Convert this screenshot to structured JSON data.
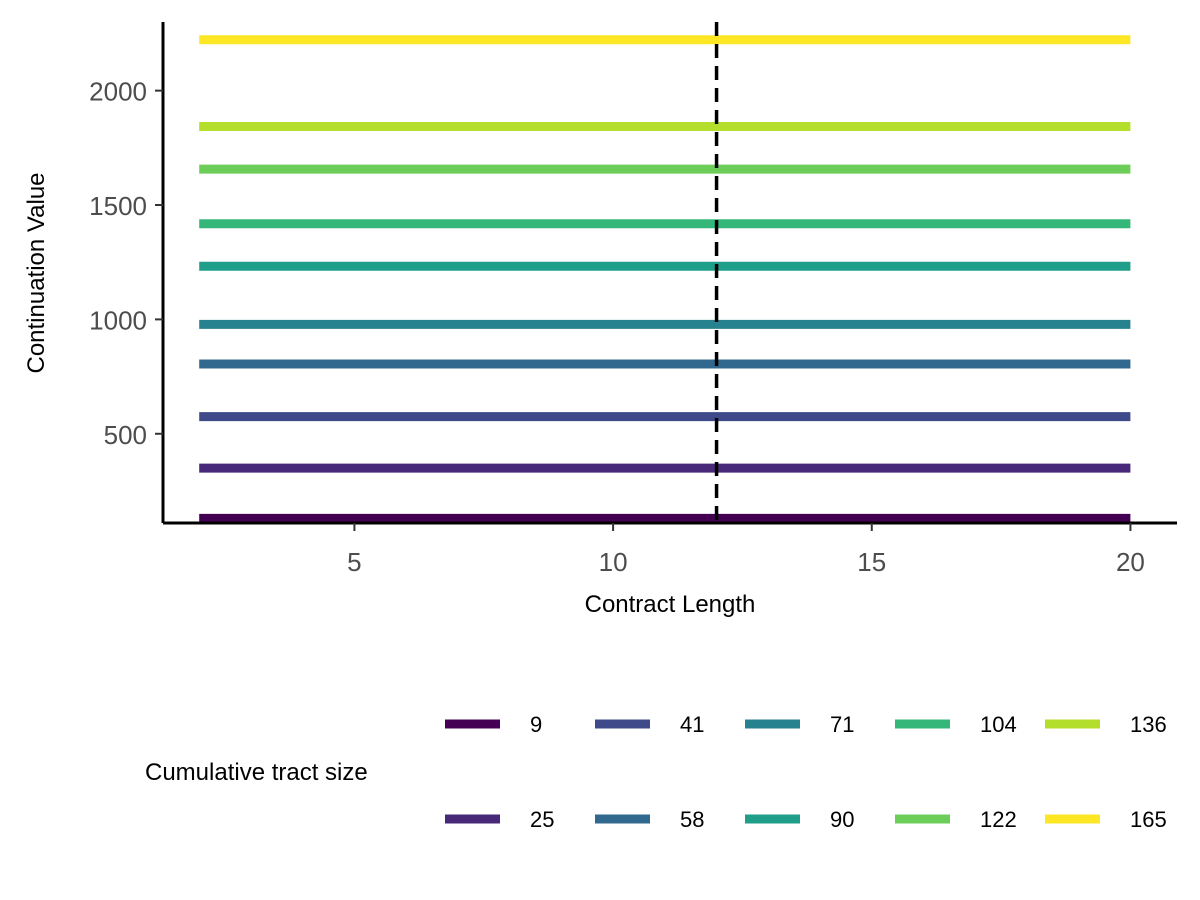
{
  "chart_data": {
    "type": "line",
    "title": "",
    "xlabel": "Contract Length",
    "ylabel": "Continuation Value",
    "xlim": [
      1.3,
      20.9
    ],
    "ylim": [
      110,
      2300
    ],
    "x_ticks": [
      5,
      10,
      15,
      20
    ],
    "y_ticks": [
      500,
      1000,
      1500,
      2000
    ],
    "grid": false,
    "reference_line": {
      "x": 12,
      "style": "dashed",
      "color": "#000000"
    },
    "legend": {
      "title": "Cumulative tract size",
      "position": "bottom"
    },
    "series": [
      {
        "name": "9",
        "color": "#440154",
        "x": [
          2,
          20
        ],
        "y": [
          130,
          130
        ]
      },
      {
        "name": "25",
        "color": "#482878",
        "x": [
          2,
          20
        ],
        "y": [
          350,
          350
        ]
      },
      {
        "name": "41",
        "color": "#3E4A89",
        "x": [
          2,
          20
        ],
        "y": [
          575,
          575
        ]
      },
      {
        "name": "58",
        "color": "#31688E",
        "x": [
          2,
          20
        ],
        "y": [
          805,
          805
        ]
      },
      {
        "name": "71",
        "color": "#26828E",
        "x": [
          2,
          20
        ],
        "y": [
          978,
          978
        ]
      },
      {
        "name": "90",
        "color": "#1F9E89",
        "x": [
          2,
          20
        ],
        "y": [
          1232,
          1232
        ]
      },
      {
        "name": "104",
        "color": "#35B779",
        "x": [
          2,
          20
        ],
        "y": [
          1418,
          1418
        ]
      },
      {
        "name": "122",
        "color": "#6DCD59",
        "x": [
          2,
          20
        ],
        "y": [
          1657,
          1657
        ]
      },
      {
        "name": "136",
        "color": "#B4DE2C",
        "x": [
          2,
          20
        ],
        "y": [
          1843,
          1843
        ]
      },
      {
        "name": "165",
        "color": "#FDE725",
        "x": [
          2,
          20
        ],
        "y": [
          2222,
          2222
        ]
      }
    ]
  }
}
